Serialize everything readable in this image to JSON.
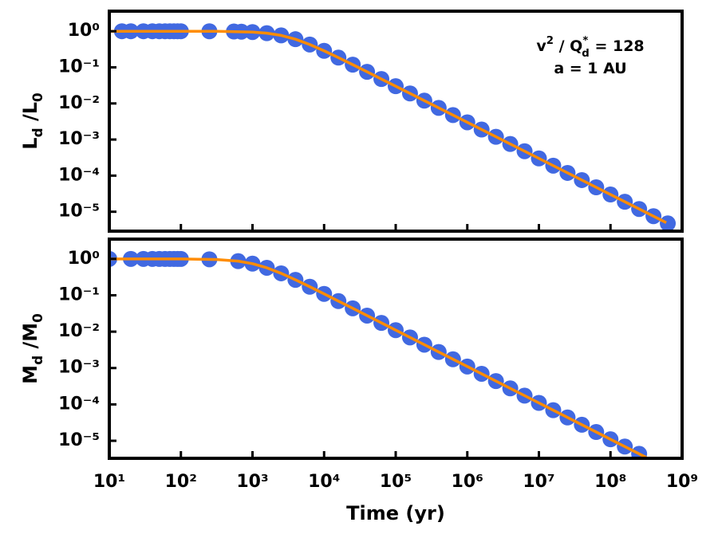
{
  "chart_data": [
    {
      "type": "scatter",
      "ylabel": [
        {
          "text": "L"
        },
        {
          "text": "d",
          "script": "sub"
        },
        {
          "text": " /L"
        },
        {
          "text": "0",
          "script": "sub"
        }
      ],
      "annotations": [
        [
          {
            "text": "v"
          },
          {
            "text": "2",
            "script": "sup"
          },
          {
            "text": " / Q"
          },
          {
            "text": "*",
            "script": "sup"
          },
          {
            "text": "d",
            "script": "sub"
          },
          {
            "text": " = 128"
          }
        ],
        [
          {
            "text": "a = 1 AU"
          }
        ]
      ],
      "xscale": "log",
      "yscale": "log",
      "xlim": [
        10,
        1000000000
      ],
      "ylim": [
        2.9e-06,
        3.6
      ],
      "xticks": [
        10,
        100,
        1000,
        10000,
        100000,
        1000000,
        10000000,
        100000000,
        1000000000
      ],
      "xticklabels": false,
      "yticks": [
        {
          "value": 1,
          "label": "10⁰"
        },
        {
          "value": 0.1,
          "label": "10⁻¹"
        },
        {
          "value": 0.01,
          "label": "10⁻²"
        },
        {
          "value": 0.001,
          "label": "10⁻³"
        },
        {
          "value": 0.0001,
          "label": "10⁻⁴"
        },
        {
          "value": 1e-05,
          "label": "10⁻⁵"
        }
      ],
      "series": [
        {
          "style": "markers",
          "color": "#4169e1",
          "x": [
            15,
            20,
            30,
            40,
            50,
            60,
            70,
            80,
            90,
            100,
            250,
            550,
            700,
            1000,
            1585,
            2512,
            3981,
            6310,
            10000,
            15850,
            25120,
            39810,
            63100,
            100000,
            158500,
            251200,
            398100,
            631000,
            1000000,
            1585000,
            2512000,
            3981000,
            6310000,
            10000000,
            15850000,
            25120000,
            39810000,
            63100000,
            100000000,
            158500000,
            251200000,
            398100000,
            631000000
          ],
          "values": [
            1.0,
            1.0,
            1.0,
            1.0,
            1.0,
            1.0,
            1.0,
            1.0,
            1.0,
            1.0,
            0.997,
            0.984,
            0.974,
            0.949,
            0.884,
            0.767,
            0.602,
            0.429,
            0.287,
            0.186,
            0.1186,
            0.0752,
            0.0475,
            0.03,
            0.0189,
            0.01194,
            0.00753,
            0.00475,
            0.003,
            0.00189,
            0.00119,
            0.000753,
            0.000475,
            0.0003,
            0.000189,
            0.000119,
            7.53e-05,
            4.75e-05,
            3e-05,
            1.89e-05,
            1.19e-05,
            7.53e-06,
            4.75e-06
          ]
        },
        {
          "style": "line",
          "color": "#ff8c00",
          "x": [
            10,
            100,
            316,
            1000,
            1585,
            2512,
            3981,
            6310,
            10000,
            15850,
            25120,
            39810,
            63100,
            100000,
            1000000,
            10000000,
            100000000,
            600000000
          ],
          "values": [
            1.0,
            0.9994,
            0.994,
            0.949,
            0.884,
            0.767,
            0.602,
            0.429,
            0.287,
            0.186,
            0.1186,
            0.0752,
            0.0475,
            0.03,
            0.003,
            0.0003,
            3e-05,
            5e-06
          ]
        }
      ]
    },
    {
      "type": "scatter",
      "ylabel": [
        {
          "text": "M"
        },
        {
          "text": "d",
          "script": "sub"
        },
        {
          "text": " /M"
        },
        {
          "text": "0",
          "script": "sub"
        }
      ],
      "xlabel": "Time (yr)",
      "xscale": "log",
      "yscale": "log",
      "xlim": [
        10,
        1000000000
      ],
      "ylim": [
        3.3e-06,
        3.5
      ],
      "xticks": [
        {
          "value": 10,
          "label": "10¹"
        },
        {
          "value": 100,
          "label": "10²"
        },
        {
          "value": 1000,
          "label": "10³"
        },
        {
          "value": 10000,
          "label": "10⁴"
        },
        {
          "value": 100000,
          "label": "10⁵"
        },
        {
          "value": 1000000,
          "label": "10⁶"
        },
        {
          "value": 10000000,
          "label": "10⁷"
        },
        {
          "value": 100000000,
          "label": "10⁸"
        },
        {
          "value": 1000000000,
          "label": "10⁹"
        }
      ],
      "yticks": [
        {
          "value": 1,
          "label": "10⁰"
        },
        {
          "value": 0.1,
          "label": "10⁻¹"
        },
        {
          "value": 0.01,
          "label": "10⁻²"
        },
        {
          "value": 0.001,
          "label": "10⁻³"
        },
        {
          "value": 0.0001,
          "label": "10⁻⁴"
        },
        {
          "value": 1e-05,
          "label": "10⁻⁵"
        }
      ],
      "series": [
        {
          "style": "markers",
          "color": "#4169e1",
          "x": [
            10,
            20,
            30,
            40,
            50,
            60,
            70,
            80,
            90,
            100,
            250,
            631,
            1000,
            1585,
            2512,
            3981,
            6310,
            10000,
            15850,
            25120,
            39810,
            63100,
            100000,
            158500,
            251200,
            398100,
            631000,
            1000000,
            1585000,
            2512000,
            3981000,
            6310000,
            10000000,
            15850000,
            25120000,
            39810000,
            63100000,
            100000000,
            158500000,
            251200000
          ],
          "values": [
            1.0,
            1.0,
            1.0,
            1.0,
            1.0,
            1.0,
            1.0,
            1.0,
            1.0,
            1.0,
            0.975,
            0.867,
            0.74,
            0.57,
            0.401,
            0.266,
            0.1717,
            0.1093,
            0.0692,
            0.0438,
            0.0276,
            0.0174,
            0.011,
            0.00694,
            0.00438,
            0.00276,
            0.00174,
            0.0011,
            0.000694,
            0.000438,
            0.000276,
            0.000174,
            0.00011,
            6.94e-05,
            4.38e-05,
            2.76e-05,
            1.74e-05,
            1.1e-05,
            6.94e-06,
            4.38e-06
          ]
        },
        {
          "style": "line",
          "color": "#ff8c00",
          "x": [
            10,
            100,
            316,
            631,
            1000,
            1585,
            2512,
            3981,
            6310,
            10000,
            15850,
            25120,
            39810,
            100000,
            1000000,
            10000000,
            100000000,
            316000000
          ],
          "values": [
            1.0,
            1.0,
            0.961,
            0.867,
            0.74,
            0.57,
            0.401,
            0.266,
            0.1717,
            0.1093,
            0.0692,
            0.0438,
            0.0276,
            0.011,
            0.0011,
            0.00011,
            1.1e-05,
            3.48e-06
          ]
        }
      ]
    }
  ]
}
